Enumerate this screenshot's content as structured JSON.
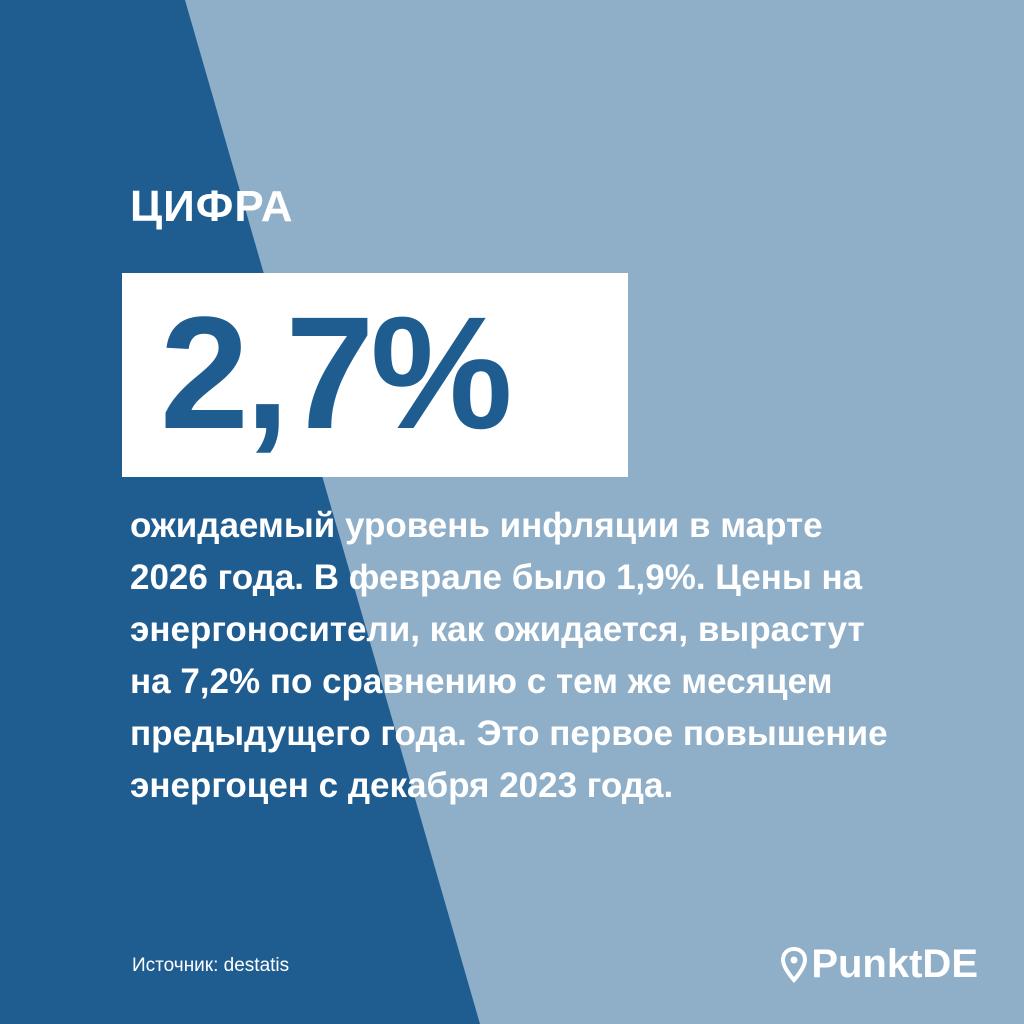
{
  "header": {
    "label": "ЦИФРА"
  },
  "highlight": {
    "value": "2,7%"
  },
  "body": {
    "lines": [
      "ожидаемый уровень инфляции в марте",
      "2026 года. В феврале было 1,9%. Цены на",
      "энергоносители, как ожидается, вырастут",
      "на 7,2% по сравнению с тем же месяцем",
      "предыдущего года. Это первое повышение",
      "энергоцен с декабря 2023 года."
    ]
  },
  "footer": {
    "source": "Источник: destatis",
    "logo": "PunktDE"
  }
}
